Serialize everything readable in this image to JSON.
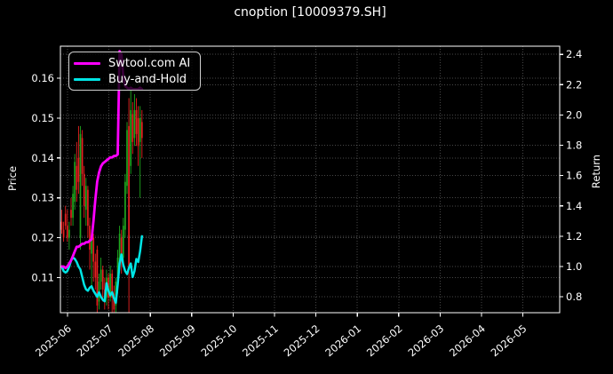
{
  "title": "cnoption [10009379.SH]",
  "legend": {
    "entries": [
      {
        "label": "Swtool.com AI",
        "color": "#ff00ff"
      },
      {
        "label": "Buy-and-Hold",
        "color": "#00e5e5"
      }
    ]
  },
  "colors": {
    "background": "#000000",
    "text": "#ffffff",
    "grid": "rgba(255,255,255,0.28)",
    "spine": "#ffffff",
    "candle_up": "#1fa71f",
    "candle_down": "#e82020",
    "ai_line": "#ff00ff",
    "bh_line": "#00e5e5"
  },
  "chart_data": {
    "type": "candlestick_with_lines",
    "title": "cnoption [10009379.SH]",
    "grid": true,
    "legend_position": "upper-left",
    "price_axis": {
      "label": "Price",
      "ticks": [
        0.11,
        0.12,
        0.13,
        0.14,
        0.15,
        0.16
      ],
      "ylim": [
        0.101,
        0.168
      ]
    },
    "return_axis": {
      "label": "Return",
      "ticks": [
        0.8,
        1.0,
        1.2,
        1.4,
        1.6,
        1.8,
        2.0,
        2.2,
        2.4
      ],
      "ylim": [
        0.69,
        2.46
      ]
    },
    "x_tick_labels": [
      "2025-06",
      "2025-07",
      "2025-08",
      "2025-09",
      "2025-10",
      "2025-11",
      "2025-12",
      "2026-01",
      "2026-02",
      "2026-03",
      "2026-04",
      "2026-05"
    ],
    "dates": [
      "2025-06-02",
      "2025-06-03",
      "2025-06-04",
      "2025-06-05",
      "2025-06-06",
      "2025-06-09",
      "2025-06-10",
      "2025-06-11",
      "2025-06-12",
      "2025-06-13",
      "2025-06-16",
      "2025-06-17",
      "2025-06-18",
      "2025-06-19",
      "2025-06-20",
      "2025-06-23",
      "2025-06-24",
      "2025-06-25",
      "2025-06-26",
      "2025-06-27",
      "2025-06-30",
      "2025-07-01",
      "2025-07-02",
      "2025-07-03",
      "2025-07-04",
      "2025-07-07",
      "2025-07-08",
      "2025-07-09",
      "2025-07-10",
      "2025-07-11",
      "2025-07-14",
      "2025-07-15",
      "2025-07-16",
      "2025-07-17",
      "2025-07-18",
      "2025-07-21",
      "2025-07-22",
      "2025-07-23",
      "2025-07-24",
      "2025-07-25",
      "2025-07-28",
      "2025-07-29",
      "2025-07-30",
      "2025-07-31"
    ],
    "ohlc": [
      [
        0.124,
        0.127,
        0.121,
        0.122
      ],
      [
        0.122,
        0.124,
        0.119,
        0.12
      ],
      [
        0.126,
        0.128,
        0.122,
        0.123
      ],
      [
        0.123,
        0.127,
        0.119,
        0.12
      ],
      [
        0.12,
        0.124,
        0.117,
        0.122
      ],
      [
        0.127,
        0.13,
        0.123,
        0.125
      ],
      [
        0.125,
        0.133,
        0.123,
        0.131
      ],
      [
        0.129,
        0.141,
        0.127,
        0.139
      ],
      [
        0.138,
        0.144,
        0.129,
        0.132
      ],
      [
        0.14,
        0.148,
        0.131,
        0.134
      ],
      [
        0.12,
        0.148,
        0.117,
        0.146
      ],
      [
        0.145,
        0.147,
        0.133,
        0.136
      ],
      [
        0.136,
        0.138,
        0.125,
        0.128
      ],
      [
        0.127,
        0.135,
        0.123,
        0.133
      ],
      [
        0.132,
        0.133,
        0.12,
        0.123
      ],
      [
        0.123,
        0.125,
        0.112,
        0.117
      ],
      [
        0.116,
        0.122,
        0.107,
        0.12
      ],
      [
        0.12,
        0.121,
        0.109,
        0.114
      ],
      [
        0.114,
        0.116,
        0.107,
        0.11
      ],
      [
        0.117,
        0.118,
        0.101,
        0.103
      ],
      [
        0.104,
        0.111,
        0.102,
        0.109
      ],
      [
        0.109,
        0.115,
        0.107,
        0.112
      ],
      [
        0.112,
        0.113,
        0.104,
        0.107
      ],
      [
        0.107,
        0.11,
        0.102,
        0.104
      ],
      [
        0.105,
        0.112,
        0.103,
        0.11
      ],
      [
        0.11,
        0.111,
        0.102,
        0.105
      ],
      [
        0.105,
        0.113,
        0.104,
        0.111
      ],
      [
        0.111,
        0.112,
        0.101,
        0.105
      ],
      [
        0.106,
        0.108,
        0.1,
        0.102
      ],
      [
        0.103,
        0.11,
        0.1,
        0.109
      ],
      [
        0.108,
        0.117,
        0.106,
        0.115
      ],
      [
        0.114,
        0.123,
        0.112,
        0.121
      ],
      [
        0.12,
        0.122,
        0.111,
        0.114
      ],
      [
        0.115,
        0.125,
        0.113,
        0.123
      ],
      [
        0.122,
        0.136,
        0.12,
        0.134
      ],
      [
        0.133,
        0.149,
        0.131,
        0.147
      ],
      [
        0.148,
        0.155,
        0.1,
        0.112
      ],
      [
        0.138,
        0.157,
        0.136,
        0.152
      ],
      [
        0.151,
        0.154,
        0.141,
        0.144
      ],
      [
        0.145,
        0.156,
        0.143,
        0.152
      ],
      [
        0.152,
        0.155,
        0.143,
        0.146
      ],
      [
        0.15,
        0.153,
        0.138,
        0.143
      ],
      [
        0.144,
        0.153,
        0.13,
        0.15
      ],
      [
        0.149,
        0.152,
        0.14,
        0.145
      ]
    ],
    "series": [
      {
        "name": "Swtool.com AI",
        "axis": "return",
        "color": "#ff00ff",
        "values": [
          1.0,
          1.0,
          0.99,
          1.0,
          1.02,
          1.04,
          1.07,
          1.1,
          1.13,
          1.13,
          1.14,
          1.15,
          1.15,
          1.16,
          1.16,
          1.17,
          1.18,
          1.3,
          1.44,
          1.56,
          1.62,
          1.66,
          1.68,
          1.69,
          1.7,
          1.71,
          1.72,
          1.72,
          1.73,
          1.73,
          1.74,
          2.42,
          2.4,
          2.25,
          2.19,
          2.18,
          2.17,
          2.18,
          2.17,
          2.17,
          2.17,
          2.17,
          2.18,
          2.17
        ]
      },
      {
        "name": "Buy-and-Hold",
        "axis": "return",
        "color": "#00e5e5",
        "values": [
          1.0,
          0.97,
          0.96,
          0.97,
          1.0,
          1.04,
          1.06,
          1.05,
          1.03,
          1.0,
          0.98,
          0.93,
          0.88,
          0.85,
          0.84,
          0.86,
          0.87,
          0.84,
          0.82,
          0.8,
          0.83,
          0.8,
          0.78,
          0.77,
          0.89,
          0.84,
          0.81,
          0.83,
          0.79,
          0.76,
          0.88,
          1.02,
          1.08,
          1.01,
          0.97,
          0.95,
          0.99,
          1.02,
          0.93,
          0.97,
          1.05,
          1.03,
          1.1,
          1.2
        ]
      }
    ]
  }
}
